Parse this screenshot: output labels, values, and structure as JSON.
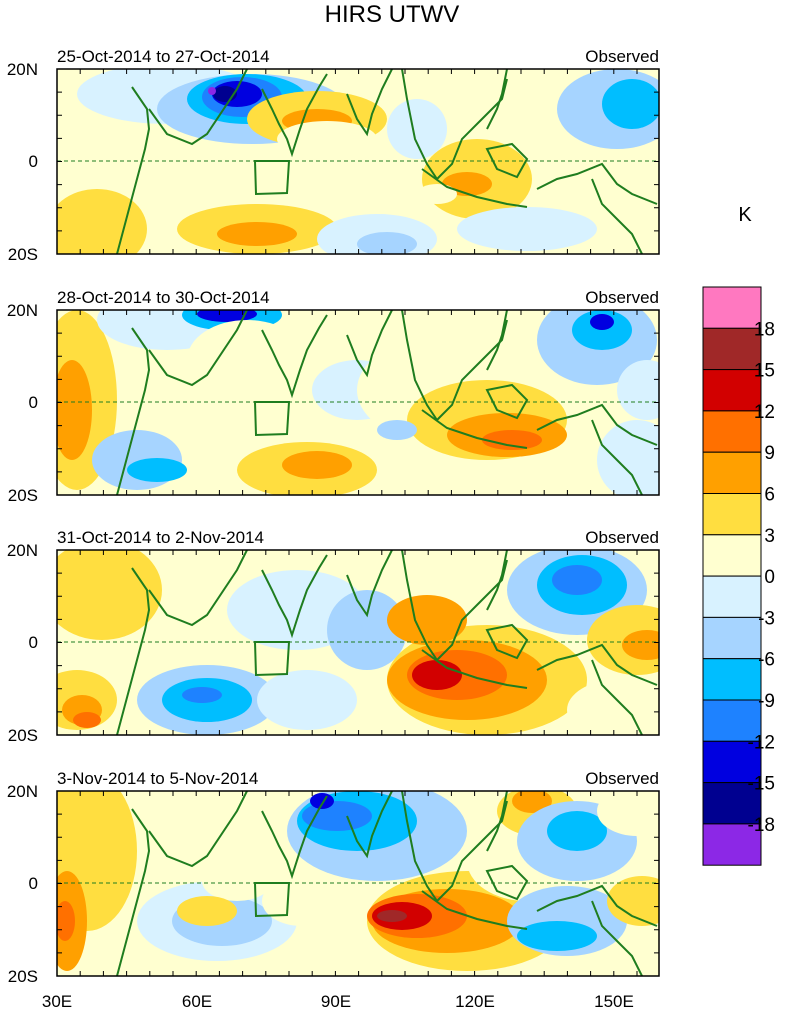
{
  "title": "HIRS UTWV",
  "panels": [
    {
      "date_range": "25-Oct-2014 to 27-Oct-2014",
      "label": "Observed"
    },
    {
      "date_range": "28-Oct-2014 to 30-Oct-2014",
      "label": "Observed"
    },
    {
      "date_range": "31-Oct-2014 to 2-Nov-2014",
      "label": "Observed"
    },
    {
      "date_range": "3-Nov-2014 to 5-Nov-2014",
      "label": "Observed"
    }
  ],
  "lat_labels": [
    "20N",
    "0",
    "20S"
  ],
  "lon_labels": [
    "30E",
    "60E",
    "90E",
    "120E",
    "150E"
  ],
  "colorbar": {
    "unit": "K",
    "tick_labels": [
      "18",
      "15",
      "12",
      "9",
      "6",
      "3",
      "0",
      "-3",
      "-6",
      "-9",
      "-12",
      "-15",
      "-18"
    ],
    "colors": [
      "#ff78c0",
      "#a02828",
      "#d20000",
      "#ff7000",
      "#ffa000",
      "#ffde40",
      "#ffffd0",
      "#d8f2ff",
      "#a6d4ff",
      "#00beff",
      "#1e82ff",
      "#0000e0",
      "#000090",
      "#8c28e6"
    ]
  }
}
